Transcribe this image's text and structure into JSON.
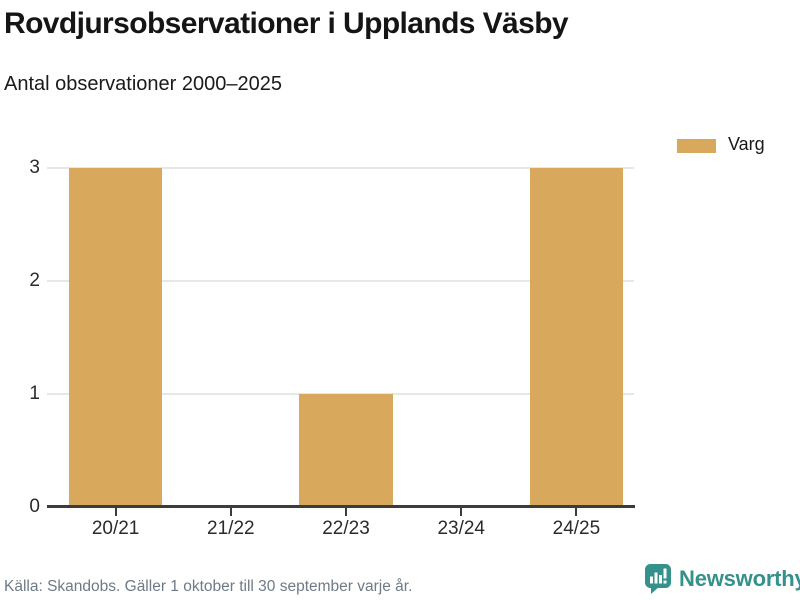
{
  "header": {
    "title": "Rovdjursobservationer i Upplands Väsby",
    "subtitle": "Antal observationer 2000–2025"
  },
  "legend": {
    "items": [
      {
        "label": "Varg",
        "color": "#D8A95C"
      }
    ]
  },
  "chart_data": {
    "type": "bar",
    "title": "Rovdjursobservationer i Upplands Väsby",
    "subtitle": "Antal observationer 2000–2025",
    "categories": [
      "20/21",
      "21/22",
      "22/23",
      "23/24",
      "24/25"
    ],
    "series": [
      {
        "name": "Varg",
        "color": "#D8A95C",
        "values": [
          3,
          0,
          1,
          0,
          3
        ]
      }
    ],
    "xlabel": "",
    "ylabel": "",
    "ylim": [
      0,
      3
    ],
    "yticks": [
      0,
      1,
      2,
      3
    ],
    "grid": true,
    "legend_position": "top-right"
  },
  "footer": {
    "source": "Källa: Skandobs. Gäller 1 oktober till 30 september varje år.",
    "brand": {
      "name": "Newsworthy",
      "color": "#35918B"
    }
  },
  "colors": {
    "bar": "#D8A95C",
    "axis": "#3C3C3C",
    "grid": "#E7E7E7",
    "text": "#1A1A1A",
    "muted": "#6E7A87",
    "teal": "#35918B"
  }
}
